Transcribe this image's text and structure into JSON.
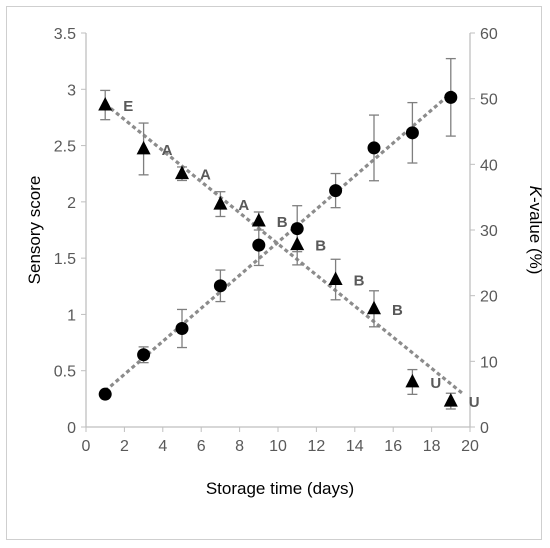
{
  "chart_data": {
    "type": "scatter",
    "title": "",
    "xlabel": "Storage time (days)",
    "ylabel_left": "Sensory score",
    "ylabel_right": "K-value (%)",
    "xlim": [
      0,
      20
    ],
    "ylim_left": [
      0,
      3.5
    ],
    "ylim_right": [
      0,
      60
    ],
    "x_ticks": [
      "0",
      "2",
      "4",
      "6",
      "8",
      "10",
      "12",
      "14",
      "16",
      "18",
      "20"
    ],
    "y_left_ticks": [
      "0",
      "0.5",
      "1",
      "1.5",
      "2",
      "2.5",
      "3",
      "3.5"
    ],
    "y_right_ticks": [
      "0",
      "10",
      "20",
      "30",
      "40",
      "50",
      "60"
    ],
    "grid": false,
    "legend": "none",
    "series": [
      {
        "marker": "triangle",
        "axis": "left",
        "x": [
          1,
          3,
          5,
          7,
          9,
          11,
          13,
          15,
          17,
          19
        ],
        "y": [
          2.86,
          2.47,
          2.25,
          1.98,
          1.83,
          1.62,
          1.31,
          1.05,
          0.4,
          0.23
        ],
        "err": [
          0.13,
          0.23,
          0.06,
          0.11,
          0.08,
          0.18,
          0.18,
          0.16,
          0.11,
          0.07
        ],
        "grades": [
          "E",
          "A",
          "A",
          "A",
          "B",
          "B",
          "B",
          "B",
          "U",
          "U"
        ],
        "trend": [
          [
            1,
            2.87
          ],
          [
            19.6,
            0.3
          ]
        ]
      },
      {
        "marker": "circle",
        "axis": "right",
        "x": [
          1,
          3,
          5,
          7,
          9,
          11,
          13,
          15,
          17,
          19
        ],
        "y": [
          5,
          11,
          15,
          21.5,
          27.7,
          30.2,
          36,
          42.5,
          44.8,
          50.2
        ],
        "err": [
          0,
          1.2,
          2.9,
          2.4,
          3.1,
          3.5,
          2.6,
          5,
          4.6,
          5.9
        ],
        "trend": [
          [
            1,
            5.5
          ],
          [
            19.2,
            51.3
          ]
        ]
      }
    ],
    "colors": {
      "marker": "#000000",
      "trend": "#8c8c8c",
      "errorbar": "#7f7f7f",
      "axis": "#bfbfbf",
      "tick_text": "#595959"
    }
  }
}
